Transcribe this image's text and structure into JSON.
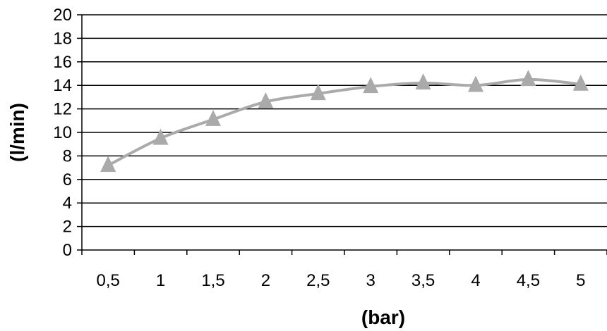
{
  "chart_data": {
    "type": "line",
    "title": "",
    "xlabel": "(bar)",
    "ylabel": "(l/min)",
    "categories": [
      "0,5",
      "1",
      "1,5",
      "2",
      "2,5",
      "3",
      "3,5",
      "4",
      "4,5",
      "5"
    ],
    "series": [
      {
        "values": [
          7.2,
          9.5,
          11.1,
          12.6,
          13.3,
          13.9,
          14.2,
          14.0,
          14.5,
          14.1
        ],
        "color": "#aaaaaa",
        "marker": "triangle"
      }
    ],
    "ylim": [
      0,
      20
    ],
    "yticks": [
      0,
      2,
      4,
      6,
      8,
      10,
      12,
      14,
      16,
      18,
      20
    ],
    "grid": true,
    "legend": "none",
    "colors": {
      "line": "#aaaaaa",
      "marker": "#aaaaaa",
      "grid": "#000000",
      "axis": "#000000"
    }
  }
}
